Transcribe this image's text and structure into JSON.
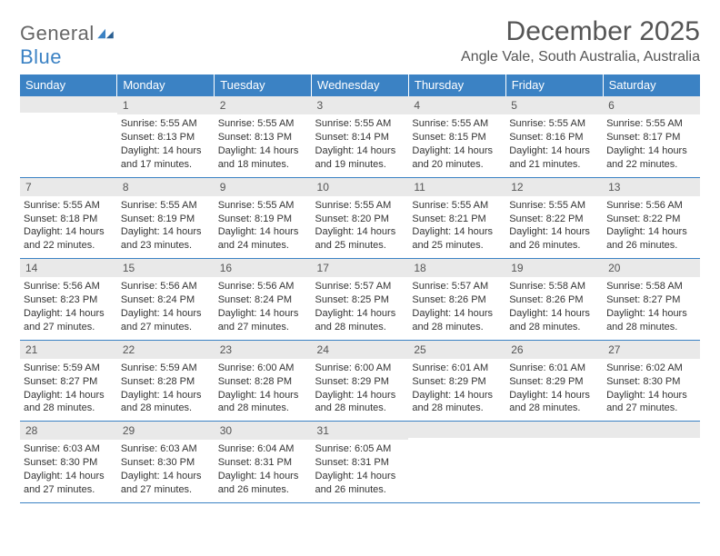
{
  "brand": {
    "general": "General",
    "blue": "Blue"
  },
  "header": {
    "month_title": "December 2025",
    "location": "Angle Vale, South Australia, Australia"
  },
  "colors": {
    "accent": "#3b82c4",
    "header_bg": "#3b82c4",
    "daynum_bg": "#e9e9e9",
    "text": "#333333",
    "muted": "#555555",
    "background": "#ffffff"
  },
  "columns": [
    "Sunday",
    "Monday",
    "Tuesday",
    "Wednesday",
    "Thursday",
    "Friday",
    "Saturday"
  ],
  "weeks": [
    [
      {
        "n": "",
        "sr": "",
        "ss": "",
        "dl": ""
      },
      {
        "n": "1",
        "sr": "Sunrise: 5:55 AM",
        "ss": "Sunset: 8:13 PM",
        "dl": "Daylight: 14 hours and 17 minutes."
      },
      {
        "n": "2",
        "sr": "Sunrise: 5:55 AM",
        "ss": "Sunset: 8:13 PM",
        "dl": "Daylight: 14 hours and 18 minutes."
      },
      {
        "n": "3",
        "sr": "Sunrise: 5:55 AM",
        "ss": "Sunset: 8:14 PM",
        "dl": "Daylight: 14 hours and 19 minutes."
      },
      {
        "n": "4",
        "sr": "Sunrise: 5:55 AM",
        "ss": "Sunset: 8:15 PM",
        "dl": "Daylight: 14 hours and 20 minutes."
      },
      {
        "n": "5",
        "sr": "Sunrise: 5:55 AM",
        "ss": "Sunset: 8:16 PM",
        "dl": "Daylight: 14 hours and 21 minutes."
      },
      {
        "n": "6",
        "sr": "Sunrise: 5:55 AM",
        "ss": "Sunset: 8:17 PM",
        "dl": "Daylight: 14 hours and 22 minutes."
      }
    ],
    [
      {
        "n": "7",
        "sr": "Sunrise: 5:55 AM",
        "ss": "Sunset: 8:18 PM",
        "dl": "Daylight: 14 hours and 22 minutes."
      },
      {
        "n": "8",
        "sr": "Sunrise: 5:55 AM",
        "ss": "Sunset: 8:19 PM",
        "dl": "Daylight: 14 hours and 23 minutes."
      },
      {
        "n": "9",
        "sr": "Sunrise: 5:55 AM",
        "ss": "Sunset: 8:19 PM",
        "dl": "Daylight: 14 hours and 24 minutes."
      },
      {
        "n": "10",
        "sr": "Sunrise: 5:55 AM",
        "ss": "Sunset: 8:20 PM",
        "dl": "Daylight: 14 hours and 25 minutes."
      },
      {
        "n": "11",
        "sr": "Sunrise: 5:55 AM",
        "ss": "Sunset: 8:21 PM",
        "dl": "Daylight: 14 hours and 25 minutes."
      },
      {
        "n": "12",
        "sr": "Sunrise: 5:55 AM",
        "ss": "Sunset: 8:22 PM",
        "dl": "Daylight: 14 hours and 26 minutes."
      },
      {
        "n": "13",
        "sr": "Sunrise: 5:56 AM",
        "ss": "Sunset: 8:22 PM",
        "dl": "Daylight: 14 hours and 26 minutes."
      }
    ],
    [
      {
        "n": "14",
        "sr": "Sunrise: 5:56 AM",
        "ss": "Sunset: 8:23 PM",
        "dl": "Daylight: 14 hours and 27 minutes."
      },
      {
        "n": "15",
        "sr": "Sunrise: 5:56 AM",
        "ss": "Sunset: 8:24 PM",
        "dl": "Daylight: 14 hours and 27 minutes."
      },
      {
        "n": "16",
        "sr": "Sunrise: 5:56 AM",
        "ss": "Sunset: 8:24 PM",
        "dl": "Daylight: 14 hours and 27 minutes."
      },
      {
        "n": "17",
        "sr": "Sunrise: 5:57 AM",
        "ss": "Sunset: 8:25 PM",
        "dl": "Daylight: 14 hours and 28 minutes."
      },
      {
        "n": "18",
        "sr": "Sunrise: 5:57 AM",
        "ss": "Sunset: 8:26 PM",
        "dl": "Daylight: 14 hours and 28 minutes."
      },
      {
        "n": "19",
        "sr": "Sunrise: 5:58 AM",
        "ss": "Sunset: 8:26 PM",
        "dl": "Daylight: 14 hours and 28 minutes."
      },
      {
        "n": "20",
        "sr": "Sunrise: 5:58 AM",
        "ss": "Sunset: 8:27 PM",
        "dl": "Daylight: 14 hours and 28 minutes."
      }
    ],
    [
      {
        "n": "21",
        "sr": "Sunrise: 5:59 AM",
        "ss": "Sunset: 8:27 PM",
        "dl": "Daylight: 14 hours and 28 minutes."
      },
      {
        "n": "22",
        "sr": "Sunrise: 5:59 AM",
        "ss": "Sunset: 8:28 PM",
        "dl": "Daylight: 14 hours and 28 minutes."
      },
      {
        "n": "23",
        "sr": "Sunrise: 6:00 AM",
        "ss": "Sunset: 8:28 PM",
        "dl": "Daylight: 14 hours and 28 minutes."
      },
      {
        "n": "24",
        "sr": "Sunrise: 6:00 AM",
        "ss": "Sunset: 8:29 PM",
        "dl": "Daylight: 14 hours and 28 minutes."
      },
      {
        "n": "25",
        "sr": "Sunrise: 6:01 AM",
        "ss": "Sunset: 8:29 PM",
        "dl": "Daylight: 14 hours and 28 minutes."
      },
      {
        "n": "26",
        "sr": "Sunrise: 6:01 AM",
        "ss": "Sunset: 8:29 PM",
        "dl": "Daylight: 14 hours and 28 minutes."
      },
      {
        "n": "27",
        "sr": "Sunrise: 6:02 AM",
        "ss": "Sunset: 8:30 PM",
        "dl": "Daylight: 14 hours and 27 minutes."
      }
    ],
    [
      {
        "n": "28",
        "sr": "Sunrise: 6:03 AM",
        "ss": "Sunset: 8:30 PM",
        "dl": "Daylight: 14 hours and 27 minutes."
      },
      {
        "n": "29",
        "sr": "Sunrise: 6:03 AM",
        "ss": "Sunset: 8:30 PM",
        "dl": "Daylight: 14 hours and 27 minutes."
      },
      {
        "n": "30",
        "sr": "Sunrise: 6:04 AM",
        "ss": "Sunset: 8:31 PM",
        "dl": "Daylight: 14 hours and 26 minutes."
      },
      {
        "n": "31",
        "sr": "Sunrise: 6:05 AM",
        "ss": "Sunset: 8:31 PM",
        "dl": "Daylight: 14 hours and 26 minutes."
      },
      {
        "n": "",
        "sr": "",
        "ss": "",
        "dl": ""
      },
      {
        "n": "",
        "sr": "",
        "ss": "",
        "dl": ""
      },
      {
        "n": "",
        "sr": "",
        "ss": "",
        "dl": ""
      }
    ]
  ]
}
